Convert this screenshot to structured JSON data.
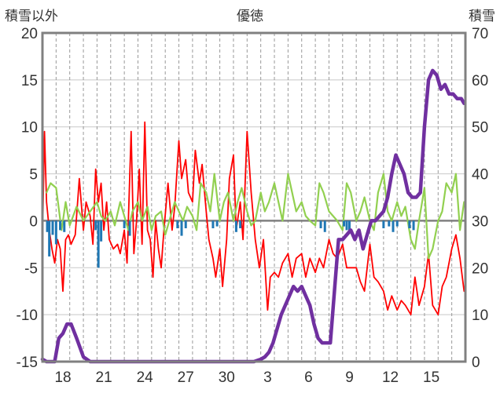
{
  "chart_data": {
    "type": "line",
    "title": "優徳",
    "ylabel_left": "積雪以外",
    "ylabel_right": "積雪",
    "ylim_left": [
      -15,
      20
    ],
    "ylim_right": [
      0,
      70
    ],
    "yticks_left": [
      "20",
      "15",
      "10",
      "5",
      "0",
      "-5",
      "-10",
      "-15"
    ],
    "yticks_right": [
      "70",
      "60",
      "50",
      "40",
      "30",
      "20",
      "10",
      "0"
    ],
    "xlim": [
      0,
      31
    ],
    "xticks": [
      {
        "label": "18",
        "x": 1.5
      },
      {
        "label": "21",
        "x": 4.5
      },
      {
        "label": "24",
        "x": 7.5
      },
      {
        "label": "27",
        "x": 10.5
      },
      {
        "label": "30",
        "x": 13.5
      },
      {
        "label": "3",
        "x": 16.5
      },
      {
        "label": "6",
        "x": 19.5
      },
      {
        "label": "9",
        "x": 22.5
      },
      {
        "label": "12",
        "x": 25.5
      },
      {
        "label": "15",
        "x": 28.5
      }
    ],
    "grid": true,
    "series": [
      {
        "axis": "left",
        "mark": "line",
        "color": "#ff0000",
        "x": [
          0,
          0.15,
          0.3,
          0.5,
          0.7,
          0.9,
          1.1,
          1.3,
          1.5,
          1.7,
          1.9,
          2.1,
          2.4,
          2.7,
          3.0,
          3.2,
          3.5,
          3.7,
          3.9,
          4.1,
          4.3,
          4.5,
          4.7,
          4.9,
          5.2,
          5.5,
          5.7,
          6.0,
          6.2,
          6.5,
          6.7,
          6.9,
          7.1,
          7.3,
          7.5,
          7.7,
          7.9,
          8.1,
          8.3,
          8.5,
          8.7,
          8.9,
          9.2,
          9.5,
          9.7,
          10.0,
          10.2,
          10.5,
          10.7,
          11.0,
          11.2,
          11.5,
          11.7,
          12.0,
          12.2,
          12.5,
          12.7,
          13.0,
          13.2,
          13.5,
          13.7,
          14.0,
          14.2,
          14.5,
          14.7,
          15.0,
          15.3,
          15.6,
          15.9,
          16.2,
          16.5,
          16.7,
          17.0,
          17.3,
          17.6,
          18.0,
          18.3,
          18.6,
          19.0,
          19.3,
          19.6,
          20.0,
          20.3,
          20.6,
          21.0,
          21.3,
          21.6,
          22.0,
          22.3,
          22.6,
          23.0,
          23.3,
          23.6,
          24.0,
          24.3,
          24.6,
          25.0,
          25.3,
          25.6,
          26.0,
          26.3,
          26.6,
          27.0,
          27.3,
          27.6,
          28.0,
          28.3,
          28.6,
          29.0,
          29.3,
          29.6,
          30.0,
          30.3,
          30.6,
          30.9
        ],
        "y": [
          -2,
          9.5,
          2,
          -1,
          -3,
          -4.5,
          -2,
          -3,
          -7.5,
          -2,
          -1.5,
          -2.5,
          -1.5,
          4.5,
          -1,
          2,
          0.5,
          -2.5,
          5.5,
          2,
          4,
          -1,
          2,
          -2,
          -3,
          -2.5,
          -3.5,
          -1,
          -4.5,
          9.5,
          -3.5,
          0,
          5.5,
          -2.5,
          10.5,
          -1,
          -2,
          -6,
          0,
          -3,
          -5,
          -1,
          4,
          -1,
          1.5,
          8.5,
          4.5,
          6.5,
          3,
          2,
          7.5,
          4,
          6,
          1,
          -2,
          -4,
          -6,
          -3,
          -7,
          -2,
          4.5,
          7,
          -1,
          2,
          -2,
          9.5,
          3,
          -2,
          -5,
          -2,
          -9.5,
          -6,
          -5.5,
          -6,
          -4.5,
          -3.5,
          -6,
          -4,
          -3.5,
          -6,
          -4,
          -5.5,
          -4,
          -5,
          -2,
          -3.5,
          -4,
          -2.5,
          -5,
          -5,
          -5,
          -6.5,
          -7.5,
          -2.5,
          -6,
          -6.5,
          -7.5,
          -9.5,
          -8,
          -9.5,
          -8.5,
          -9,
          -10,
          -6,
          -9,
          -7,
          -3.5,
          -9,
          -10,
          -7,
          -6,
          -3,
          -1.5,
          -4,
          -7.5
        ]
      },
      {
        "axis": "left",
        "mark": "line",
        "color": "#92d050",
        "x": [
          0.3,
          0.6,
          1.0,
          1.4,
          1.7,
          2.0,
          2.5,
          3.0,
          3.5,
          4.0,
          4.3,
          4.6,
          5.0,
          5.3,
          5.7,
          6.0,
          6.3,
          6.6,
          7.0,
          7.3,
          7.7,
          8.0,
          8.3,
          8.7,
          9.0,
          9.3,
          9.7,
          10.0,
          10.3,
          10.6,
          11.0,
          11.3,
          11.6,
          12.0,
          12.3,
          12.6,
          13.0,
          13.3,
          13.6,
          14.0,
          14.3,
          14.6,
          15.0,
          15.3,
          15.6,
          16.0,
          16.3,
          16.6,
          17.0,
          17.3,
          17.6,
          18.0,
          18.3,
          18.6,
          19.0,
          19.3,
          19.6,
          20.0,
          20.3,
          20.6,
          21.0,
          21.3,
          21.6,
          22.0,
          22.3,
          22.6,
          23.0,
          23.3,
          23.6,
          24.0,
          24.3,
          24.6,
          25.0,
          25.3,
          25.6,
          26.0,
          26.3,
          26.6,
          27.0,
          27.3,
          27.6,
          28.0,
          28.3,
          28.6,
          29.0,
          29.3,
          29.6,
          30.0,
          30.3,
          30.6,
          30.9
        ],
        "y": [
          3,
          4,
          3.5,
          -1,
          2,
          -0.5,
          1.5,
          0,
          1,
          2,
          0.5,
          0,
          1,
          -0.5,
          2,
          0.5,
          -1,
          1,
          2,
          0,
          1.5,
          -1,
          0.5,
          1,
          -1.5,
          0,
          2,
          1,
          0,
          1.5,
          0.5,
          -1,
          4,
          3,
          1,
          5,
          0,
          2,
          3,
          0,
          2,
          3.5,
          1,
          -0.5,
          0,
          3,
          1,
          2,
          4,
          2,
          0,
          5,
          3,
          1,
          2,
          0.5,
          0,
          -0.5,
          4,
          3,
          1,
          0.5,
          0,
          -1,
          4,
          3,
          0,
          1,
          2.5,
          0,
          -1,
          3,
          5,
          1,
          0,
          2,
          0.5,
          1.5,
          -2,
          -3,
          0,
          3.5,
          -4,
          -3,
          0,
          1,
          4,
          3,
          5,
          -1,
          2
        ]
      },
      {
        "axis": "left",
        "mark": "bar",
        "color": "#1f77b4",
        "x": [
          0.35,
          0.5,
          0.75,
          1.0,
          1.3,
          1.6,
          3.9,
          4.1,
          4.3,
          6.0,
          6.4,
          9.9,
          10.2,
          10.5,
          12.5,
          12.8,
          14.2,
          14.5,
          20.4,
          20.7,
          22.1,
          22.3,
          22.5,
          25.0,
          25.4,
          25.7,
          26.0,
          26.9,
          27.2
        ],
        "y": [
          -1.2,
          -3.8,
          -1.5,
          -2.5,
          -1,
          -1.2,
          -1,
          -5,
          -2.2,
          -0.8,
          -1.6,
          -0.8,
          -1.6,
          -0.8,
          -0.8,
          -0.6,
          -1.2,
          -0.8,
          -0.8,
          -1.2,
          -0.6,
          -1,
          -1.2,
          -0.8,
          -0.6,
          -1.2,
          -0.6,
          -0.8,
          -1
        ]
      },
      {
        "axis": "right",
        "mark": "line",
        "color": "#7030a0",
        "x": [
          0,
          0.3,
          0.6,
          0.9,
          1.2,
          1.5,
          1.8,
          2.1,
          2.5,
          3.0,
          3.5,
          4.0,
          5.0,
          6.0,
          7.0,
          8.0,
          9.0,
          10.0,
          11.0,
          12.0,
          13.0,
          14.0,
          15.0,
          15.5,
          16.0,
          16.3,
          16.6,
          16.9,
          17.2,
          17.5,
          17.8,
          18.1,
          18.4,
          18.7,
          19.0,
          19.3,
          19.6,
          19.9,
          20.2,
          20.5,
          20.8,
          21.1,
          21.4,
          21.7,
          22.0,
          22.3,
          22.6,
          22.9,
          23.2,
          23.5,
          23.8,
          24.1,
          24.4,
          24.7,
          25.0,
          25.3,
          25.6,
          25.9,
          26.2,
          26.5,
          26.8,
          27.1,
          27.4,
          27.7,
          28.0,
          28.3,
          28.6,
          28.9,
          29.2,
          29.5,
          29.8,
          30.1,
          30.4,
          30.7,
          30.9
        ],
        "y": [
          0.5,
          0,
          0,
          0,
          5,
          6,
          8,
          8,
          5,
          1,
          0,
          0,
          0,
          0,
          0,
          0,
          0,
          0,
          0,
          0,
          0,
          0,
          0,
          0,
          0.5,
          1,
          2,
          4,
          7,
          10,
          12,
          14,
          16,
          15,
          16,
          14,
          12,
          8,
          5,
          4,
          4,
          4,
          15,
          26,
          26,
          27,
          28,
          26,
          28,
          24,
          27,
          30,
          30,
          31,
          32,
          35,
          40,
          44,
          42,
          40,
          36,
          35,
          35,
          36,
          50,
          60,
          62,
          61,
          58,
          59,
          57,
          57,
          56,
          56,
          55
        ]
      }
    ]
  }
}
